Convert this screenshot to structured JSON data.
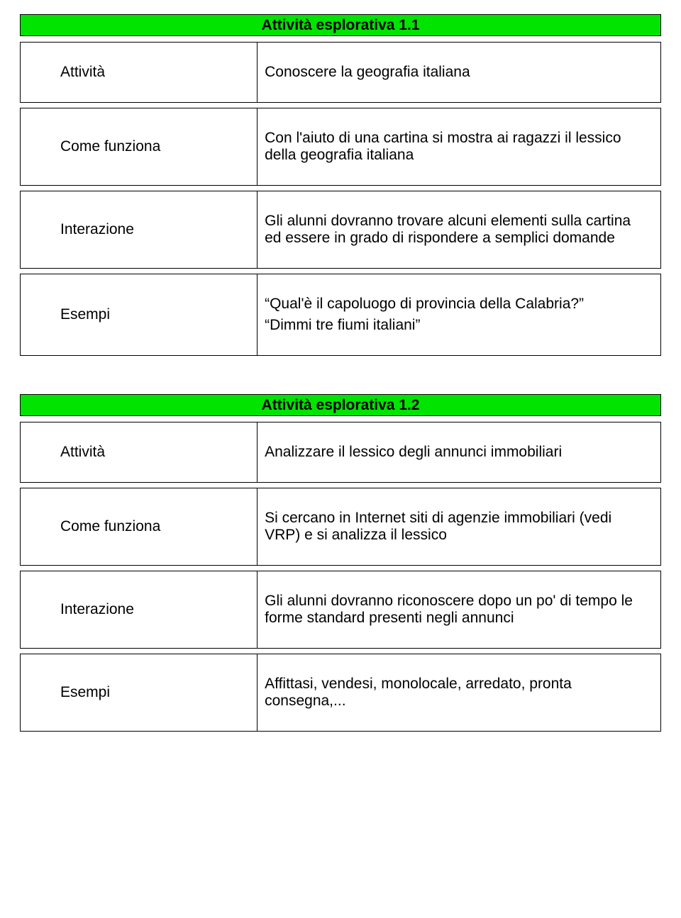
{
  "colors": {
    "title_bg": "#00e400",
    "border": "#000000",
    "text": "#000000",
    "page_bg": "#ffffff"
  },
  "typography": {
    "body_fontsize_pt": 16,
    "title_fontsize_pt": 16,
    "title_weight": "bold",
    "font_family": "Arial"
  },
  "blocks": [
    {
      "title": "Attività esplorativa 1.1",
      "rows": [
        {
          "label": "Attività",
          "content": [
            "Conoscere la geografia italiana"
          ]
        },
        {
          "label": "Come funziona",
          "content": [
            "Con l'aiuto di una cartina si mostra ai ragazzi il lessico della geografia italiana"
          ]
        },
        {
          "label": "Interazione",
          "content": [
            "Gli alunni dovranno trovare alcuni elementi sulla cartina ed essere in grado di rispondere a semplici domande"
          ]
        },
        {
          "label": "Esempi",
          "content": [
            "“Qual'è il capoluogo di provincia della Calabria?”",
            "“Dimmi tre fiumi italiani”"
          ]
        }
      ]
    },
    {
      "title": "Attività esplorativa 1.2",
      "rows": [
        {
          "label": "Attività",
          "content": [
            "Analizzare il lessico degli annunci immobiliari"
          ]
        },
        {
          "label": "Come funziona",
          "content": [
            "Si cercano in Internet siti di agenzie immobiliari (vedi VRP) e si analizza il lessico"
          ]
        },
        {
          "label": "Interazione",
          "content": [
            "Gli alunni dovranno riconoscere dopo un po' di tempo le forme standard presenti negli annunci"
          ]
        },
        {
          "label": "Esempi",
          "content": [
            "Affittasi, vendesi, monolocale, arredato, pronta consegna,..."
          ]
        }
      ]
    }
  ]
}
